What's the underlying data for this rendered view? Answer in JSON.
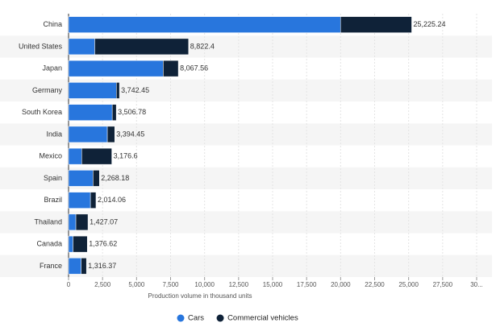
{
  "chart_data": {
    "type": "stacked-horizontal-bar",
    "categories": [
      "China",
      "United States",
      "Japan",
      "Germany",
      "South Korea",
      "India",
      "Mexico",
      "Spain",
      "Brazil",
      "Thailand",
      "Canada",
      "France"
    ],
    "series": [
      {
        "name": "Cars",
        "color": "#2876dd",
        "values": [
          19994.08,
          1926.8,
          6960.03,
          3515.37,
          3211.71,
          2851.27,
          967.48,
          1800.66,
          1608.87,
          537.63,
          327.68,
          927.26
        ]
      },
      {
        "name": "Commercial vehicles",
        "color": "#0f2238",
        "values": [
          5231.16,
          6895.6,
          1107.53,
          227.08,
          295.07,
          543.18,
          2209.12,
          467.52,
          405.19,
          889.44,
          1048.94,
          389.11
        ]
      }
    ],
    "total_labels": [
      "25,225.24",
      "8,822.4",
      "8,067.56",
      "3,742.45",
      "3,506.78",
      "3,394.45",
      "3,176.6",
      "2,268.18",
      "2,014.06",
      "1,427.07",
      "1,376.62",
      "1,316.37"
    ],
    "x_label": "Production volume in thousand units",
    "xlim": [
      0,
      30000
    ],
    "xticks": [
      0,
      {
        "value": 2500,
        "label": "2,500"
      },
      {
        "value": 5000,
        "label": "5,000"
      },
      {
        "value": 7500,
        "label": "7,500"
      },
      {
        "value": 10000,
        "label": "10,000"
      },
      {
        "value": 12500,
        "label": "12,500"
      },
      {
        "value": 15000,
        "label": "15,000"
      },
      {
        "value": 17500,
        "label": "17,500"
      },
      {
        "value": 20000,
        "label": "20,000"
      },
      {
        "value": 22500,
        "label": "22,500"
      },
      {
        "value": 25000,
        "label": "25,000"
      },
      {
        "value": 27500,
        "label": "27,500"
      },
      {
        "value": 30000,
        "label": "30..."
      }
    ],
    "grid": true
  }
}
